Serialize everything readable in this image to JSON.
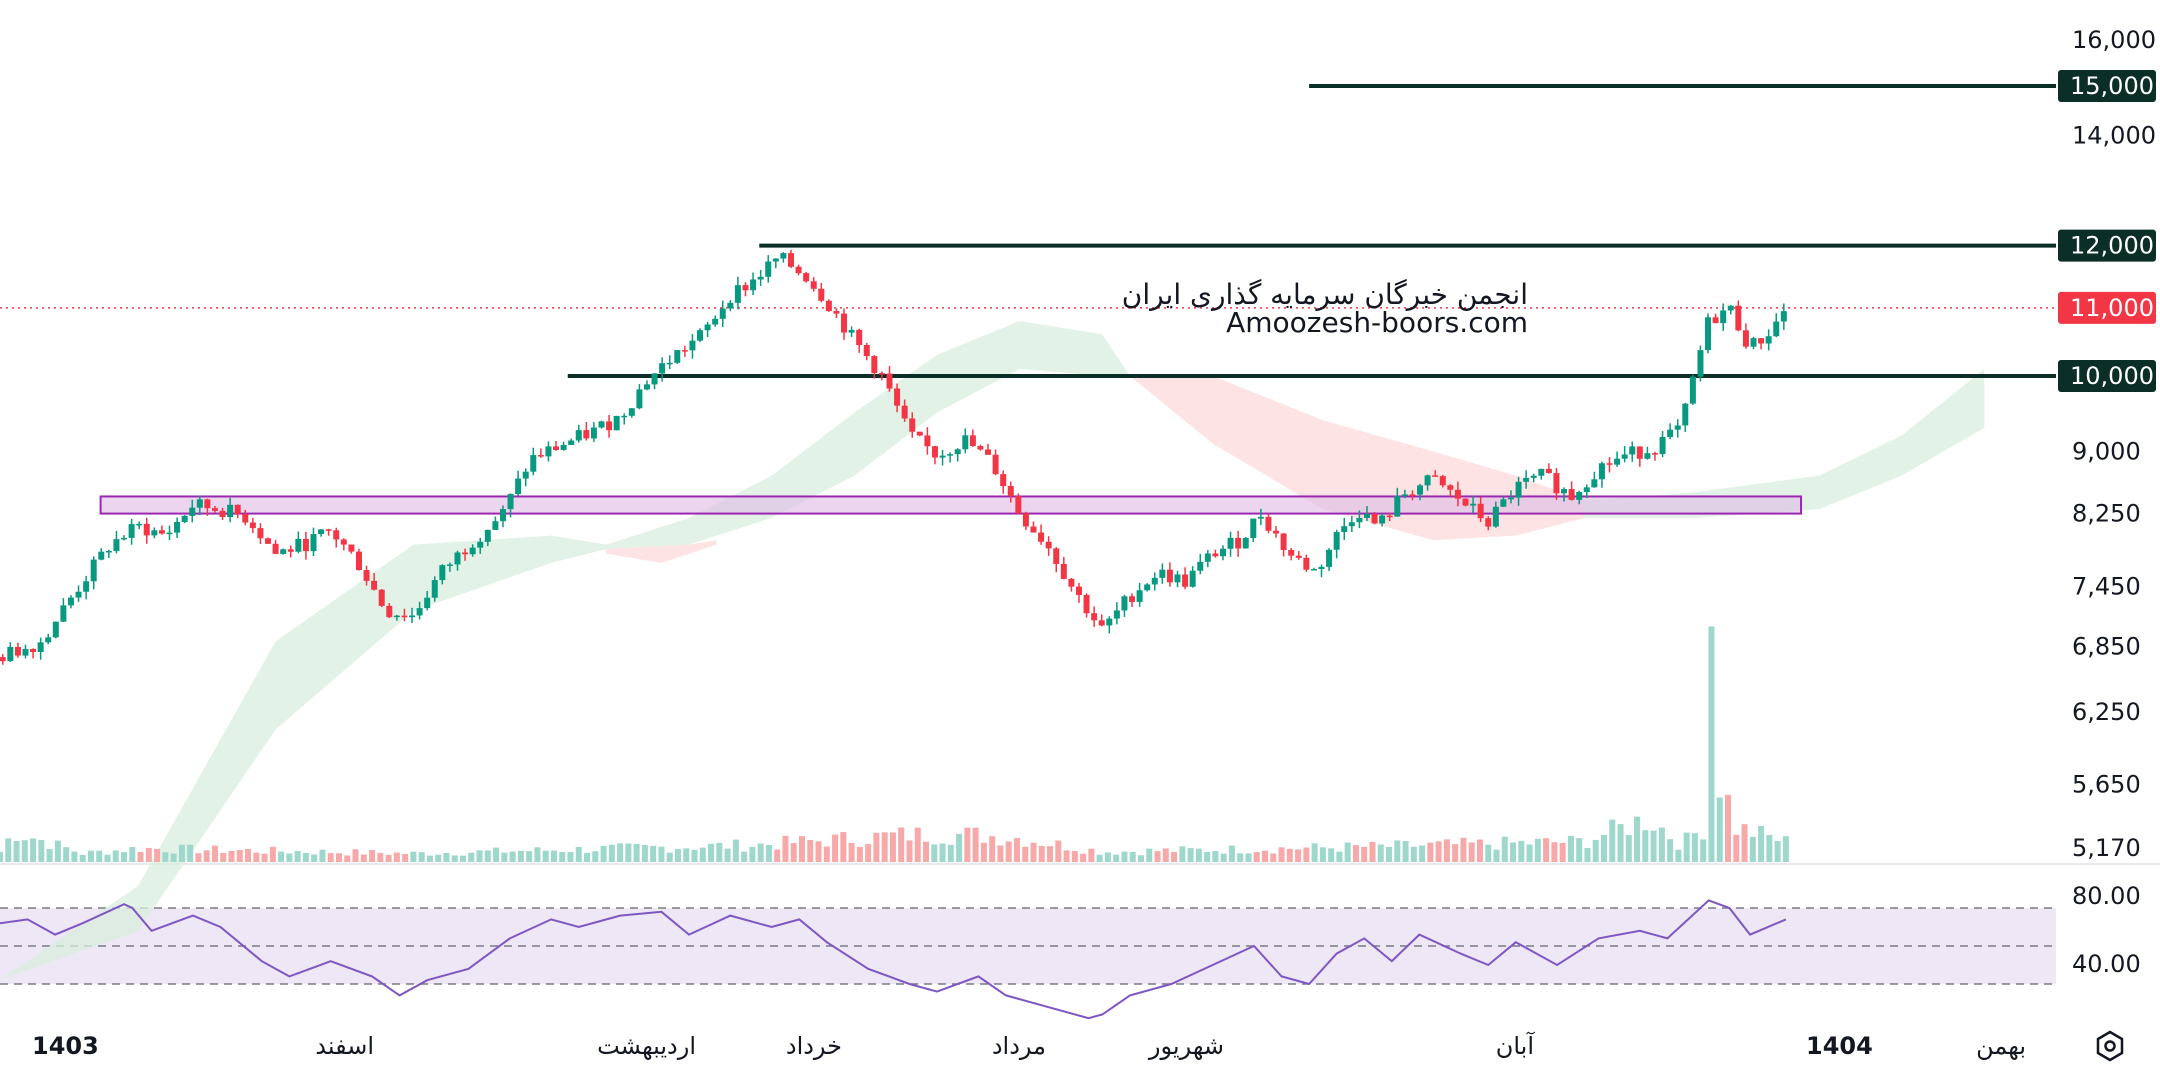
{
  "colors": {
    "up": "#089981",
    "down": "#f23645",
    "level_line": "#0b2e26",
    "current_price_bg": "#f23645",
    "zone_fill": "#e1bee7",
    "zone_border": "#9c27b0",
    "cloud_bull": "#d9eedd",
    "cloud_bear": "#fcdada",
    "rsi_line": "#7e57c2",
    "rsi_band": "#ede7f6"
  },
  "watermark": {
    "line1": "انجمن خبرگان سرمایه گذاری ایران",
    "line2": "Amoozesh-boors.com"
  },
  "y_axis": {
    "ticks": [
      "16,000",
      "14,000",
      "9,000",
      "8,250",
      "7,450",
      "6,850",
      "6,250",
      "5,650",
      "5,170"
    ],
    "levels": [
      "15,000",
      "12,000",
      "10,000"
    ],
    "current_price": "11,000"
  },
  "x_axis": {
    "labels": [
      "1403",
      "اسفند",
      "اردیبهشت",
      "خرداد",
      "مرداد",
      "شهریور",
      "آبان",
      "1404",
      "بهمن"
    ]
  },
  "rsi": {
    "upper_label": "80.00",
    "lower_label": "40.00"
  },
  "toolbar": {
    "settings_icon": "hexagon-settings-icon"
  },
  "chart_data": {
    "type": "candlestick",
    "price_axis": {
      "scale": "log",
      "ticks": [
        16000,
        14000,
        9000,
        8250,
        7450,
        6850,
        6250,
        5650,
        5170
      ]
    },
    "horizontal_levels": [
      15000,
      12000,
      10000
    ],
    "current_price": 11000,
    "support_zone": [
      8250,
      8450
    ],
    "time_labels": [
      "1403",
      "اسفند",
      "اردیبهشت",
      "خرداد",
      "مرداد",
      "شهریور",
      "آبان",
      "1404",
      "بهمن"
    ],
    "close_path": [
      [
        0,
        6750
      ],
      [
        30,
        6900
      ],
      [
        55,
        7400
      ],
      [
        80,
        7900
      ],
      [
        100,
        8100
      ],
      [
        120,
        8000
      ],
      [
        140,
        8350
      ],
      [
        160,
        8300
      ],
      [
        180,
        8200
      ],
      [
        200,
        7800
      ],
      [
        220,
        7900
      ],
      [
        240,
        8050
      ],
      [
        260,
        7700
      ],
      [
        280,
        7200
      ],
      [
        300,
        7150
      ],
      [
        320,
        7600
      ],
      [
        340,
        7900
      ],
      [
        365,
        8250
      ],
      [
        385,
        8900
      ],
      [
        410,
        9100
      ],
      [
        430,
        9250
      ],
      [
        450,
        9450
      ],
      [
        470,
        9950
      ],
      [
        490,
        10300
      ],
      [
        510,
        10600
      ],
      [
        530,
        11200
      ],
      [
        545,
        11400
      ],
      [
        565,
        11800
      ],
      [
        585,
        11500
      ],
      [
        600,
        11100
      ],
      [
        620,
        10500
      ],
      [
        640,
        10000
      ],
      [
        660,
        9200
      ],
      [
        680,
        8950
      ],
      [
        700,
        9150
      ],
      [
        720,
        8850
      ],
      [
        740,
        8250
      ],
      [
        760,
        7900
      ],
      [
        780,
        7400
      ],
      [
        800,
        7000
      ],
      [
        820,
        7350
      ],
      [
        840,
        7600
      ],
      [
        860,
        7500
      ],
      [
        880,
        7800
      ],
      [
        900,
        7950
      ],
      [
        915,
        8250
      ],
      [
        935,
        7800
      ],
      [
        955,
        7600
      ],
      [
        970,
        8000
      ],
      [
        985,
        8300
      ],
      [
        1000,
        8100
      ],
      [
        1020,
        8500
      ],
      [
        1040,
        8650
      ],
      [
        1060,
        8400
      ],
      [
        1080,
        8150
      ],
      [
        1100,
        8550
      ],
      [
        1120,
        8700
      ],
      [
        1140,
        8450
      ],
      [
        1160,
        8800
      ],
      [
        1180,
        8950
      ],
      [
        1200,
        9050
      ],
      [
        1220,
        9300
      ],
      [
        1240,
        10800
      ],
      [
        1255,
        11000
      ],
      [
        1270,
        10400
      ],
      [
        1285,
        10650
      ],
      [
        1296,
        11000
      ]
    ],
    "cloud": [
      {
        "color": "bull",
        "top": [
          [
            0,
            4300
          ],
          [
            100,
            4900
          ],
          [
            200,
            6900
          ],
          [
            300,
            7900
          ],
          [
            400,
            8000
          ],
          [
            440,
            7900
          ],
          [
            500,
            8200
          ],
          [
            560,
            8700
          ],
          [
            620,
            9500
          ],
          [
            680,
            10300
          ],
          [
            740,
            10800
          ],
          [
            800,
            10600
          ],
          [
            820,
            10000
          ]
        ],
        "bottom": [
          [
            0,
            4300
          ],
          [
            100,
            4600
          ],
          [
            200,
            6100
          ],
          [
            300,
            7200
          ],
          [
            400,
            7700
          ],
          [
            440,
            7850
          ],
          [
            500,
            7900
          ],
          [
            560,
            8200
          ],
          [
            620,
            8700
          ],
          [
            680,
            9500
          ],
          [
            740,
            10100
          ],
          [
            800,
            10000
          ],
          [
            820,
            10000
          ]
        ]
      },
      {
        "color": "bear",
        "top": [
          [
            440,
            7850
          ],
          [
            500,
            7900
          ],
          [
            520,
            7950
          ]
        ],
        "bottom": [
          [
            440,
            7800
          ],
          [
            480,
            7700
          ],
          [
            520,
            7900
          ]
        ]
      },
      {
        "color": "bear",
        "top": [
          [
            820,
            10000
          ],
          [
            880,
            10000
          ],
          [
            960,
            9400
          ],
          [
            1040,
            9000
          ],
          [
            1100,
            8700
          ],
          [
            1150,
            8400
          ]
        ],
        "bottom": [
          [
            820,
            10000
          ],
          [
            880,
            9100
          ],
          [
            960,
            8300
          ],
          [
            1040,
            7950
          ],
          [
            1100,
            8000
          ],
          [
            1150,
            8200
          ]
        ]
      },
      {
        "color": "bull",
        "top": [
          [
            1150,
            8400
          ],
          [
            1230,
            8500
          ],
          [
            1320,
            8700
          ],
          [
            1380,
            9200
          ],
          [
            1440,
            10100
          ]
        ],
        "bottom": [
          [
            1150,
            8200
          ],
          [
            1230,
            8200
          ],
          [
            1320,
            8300
          ],
          [
            1380,
            8700
          ],
          [
            1440,
            9300
          ]
        ]
      }
    ],
    "volume": {
      "max_bar_at_x": 1244,
      "profile": [
        [
          0,
          0.3
        ],
        [
          10,
          0.9
        ],
        [
          60,
          0.25
        ],
        [
          100,
          0.4
        ],
        [
          160,
          0.35
        ],
        [
          300,
          0.25
        ],
        [
          550,
          0.5
        ],
        [
          660,
          0.8
        ],
        [
          705,
          0.8
        ],
        [
          740,
          0.7
        ],
        [
          800,
          0.3
        ],
        [
          1000,
          0.45
        ],
        [
          1150,
          0.6
        ],
        [
          1197,
          1.3
        ],
        [
          1220,
          0.5
        ],
        [
          1238,
          1.1
        ],
        [
          1244,
          3.0
        ],
        [
          1260,
          1.0
        ],
        [
          1296,
          0.6
        ]
      ]
    },
    "rsi": {
      "upper": 80,
      "lower": 40,
      "mid": 60,
      "values": [
        [
          0,
          72
        ],
        [
          20,
          74
        ],
        [
          40,
          66
        ],
        [
          60,
          72
        ],
        [
          90,
          82
        ],
        [
          96,
          80
        ],
        [
          110,
          68
        ],
        [
          140,
          76
        ],
        [
          160,
          70
        ],
        [
          190,
          52
        ],
        [
          210,
          44
        ],
        [
          240,
          52
        ],
        [
          270,
          44
        ],
        [
          290,
          34
        ],
        [
          310,
          42
        ],
        [
          340,
          48
        ],
        [
          370,
          64
        ],
        [
          400,
          74
        ],
        [
          420,
          70
        ],
        [
          450,
          76
        ],
        [
          480,
          78
        ],
        [
          500,
          66
        ],
        [
          530,
          76
        ],
        [
          560,
          70
        ],
        [
          580,
          74
        ],
        [
          600,
          62
        ],
        [
          630,
          48
        ],
        [
          660,
          40
        ],
        [
          680,
          36
        ],
        [
          710,
          44
        ],
        [
          730,
          34
        ],
        [
          760,
          28
        ],
        [
          790,
          22
        ],
        [
          800,
          24
        ],
        [
          820,
          34
        ],
        [
          850,
          40
        ],
        [
          880,
          50
        ],
        [
          910,
          60
        ],
        [
          930,
          44
        ],
        [
          950,
          40
        ],
        [
          970,
          56
        ],
        [
          990,
          64
        ],
        [
          1010,
          52
        ],
        [
          1030,
          66
        ],
        [
          1060,
          56
        ],
        [
          1080,
          50
        ],
        [
          1100,
          62
        ],
        [
          1130,
          50
        ],
        [
          1160,
          64
        ],
        [
          1190,
          68
        ],
        [
          1210,
          64
        ],
        [
          1240,
          84
        ],
        [
          1255,
          80
        ],
        [
          1270,
          66
        ],
        [
          1296,
          74
        ]
      ]
    }
  }
}
